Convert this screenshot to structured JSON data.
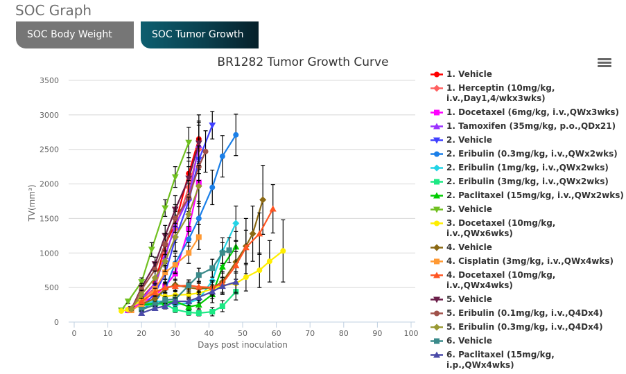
{
  "page": {
    "title": "SOC Graph",
    "tabs": [
      {
        "label": "SOC Body Weight",
        "active": false
      },
      {
        "label": "SOC Tumor Growth",
        "active": true
      }
    ],
    "menu_icon": "hamburger-menu-icon"
  },
  "chart_data": {
    "type": "line",
    "title": "BR1282 Tumor Growth Curve",
    "xlabel": "Days post inoculation",
    "ylabel": "TV(mm³)",
    "xlim": [
      0,
      100
    ],
    "ylim": [
      0,
      3500
    ],
    "xticks": [
      "0",
      "10",
      "20",
      "30",
      "40",
      "50",
      "60",
      "70",
      "80",
      "90",
      "100"
    ],
    "yticks": [
      "0",
      "500",
      "1000",
      "1500",
      "2000",
      "2500",
      "3000",
      "3500"
    ],
    "grid": "horizontal",
    "legend_position": "right",
    "error_bars": true,
    "series": [
      {
        "name": "1. Vehicle",
        "color": "#ff0000",
        "marker": "circle",
        "x": [
          16,
          20,
          24,
          27,
          30,
          34,
          37
        ],
        "y": [
          180,
          350,
          560,
          1120,
          1420,
          2150,
          2650
        ],
        "err": [
          20,
          60,
          100,
          150,
          200,
          300,
          350
        ]
      },
      {
        "name": "1. Herceptin (10mg/kg,\ni.v.,Day1,4/wkx3wks)",
        "color": "#ff6060",
        "marker": "diamond",
        "x": [
          16,
          20,
          24,
          27,
          30,
          34,
          37
        ],
        "y": [
          175,
          320,
          500,
          1000,
          1350,
          1950,
          2500
        ],
        "err": [
          20,
          60,
          100,
          150,
          200,
          300,
          350
        ]
      },
      {
        "name": "1. Docetaxel (6mg/kg, i.v.,QWx3wks)",
        "color": "#ff00ff",
        "marker": "square",
        "x": [
          16,
          20,
          24,
          27,
          30,
          34,
          37
        ],
        "y": [
          170,
          280,
          380,
          520,
          700,
          1350,
          2020
        ],
        "err": [
          20,
          50,
          80,
          100,
          150,
          250,
          300
        ]
      },
      {
        "name": "1. Tamoxifen (35mg/kg, p.o.,QDx21)",
        "color": "#9b30ff",
        "marker": "triangle",
        "x": [
          16,
          20,
          24,
          27,
          30,
          34,
          37
        ],
        "y": [
          175,
          330,
          560,
          950,
          1400,
          1800,
          2560
        ],
        "err": [
          20,
          60,
          100,
          150,
          200,
          300,
          350
        ]
      },
      {
        "name": "2. Vehicle",
        "color": "#4040ff",
        "marker": "triangle-down",
        "x": [
          20,
          24,
          27,
          30,
          34,
          37,
          41
        ],
        "y": [
          200,
          420,
          700,
          1200,
          1750,
          2350,
          2850
        ],
        "err": [
          40,
          80,
          120,
          180,
          250,
          300,
          200
        ]
      },
      {
        "name": "2. Eribulin (0.3mg/kg, i.v.,QWx2wks)",
        "color": "#1a7fe8",
        "marker": "circle",
        "x": [
          20,
          24,
          27,
          30,
          34,
          37,
          41,
          44,
          48
        ],
        "y": [
          180,
          300,
          480,
          850,
          1200,
          1500,
          1950,
          2400,
          2710
        ],
        "err": [
          30,
          50,
          80,
          150,
          180,
          250,
          250,
          300,
          300
        ]
      },
      {
        "name": "2. Eribulin (1mg/kg, i.v.,QWx2wks)",
        "color": "#22d4e6",
        "marker": "diamond",
        "x": [
          20,
          24,
          27,
          30,
          34,
          37,
          41,
          44,
          48
        ],
        "y": [
          260,
          300,
          300,
          250,
          280,
          330,
          600,
          1020,
          1430
        ],
        "err": [
          30,
          40,
          50,
          50,
          60,
          80,
          150,
          200,
          250
        ]
      },
      {
        "name": "2. Eribulin (3mg/kg, i.v.,QWx2wks)",
        "color": "#1ce884",
        "marker": "square",
        "x": [
          20,
          24,
          27,
          30,
          34,
          37,
          41,
          44,
          48
        ],
        "y": [
          240,
          250,
          260,
          180,
          140,
          130,
          150,
          230,
          440
        ],
        "err": [
          30,
          40,
          40,
          40,
          40,
          40,
          60,
          80,
          120
        ]
      },
      {
        "name": "2. Paclitaxel (15mg/kg, i.v.,QWx2wks)",
        "color": "#00cc00",
        "marker": "triangle",
        "x": [
          20,
          24,
          27,
          30,
          34,
          37,
          41,
          44,
          48
        ],
        "y": [
          250,
          270,
          280,
          300,
          220,
          250,
          400,
          800,
          1090
        ],
        "err": [
          30,
          40,
          40,
          50,
          50,
          60,
          120,
          200,
          220
        ]
      },
      {
        "name": "3. Vehicle",
        "color": "#70c020",
        "marker": "triangle-down",
        "x": [
          14,
          16,
          20,
          23,
          27,
          30,
          34
        ],
        "y": [
          170,
          300,
          580,
          1050,
          1650,
          2100,
          2600
        ],
        "err": [
          15,
          30,
          60,
          100,
          120,
          150,
          220
        ]
      },
      {
        "name": "3. Docetaxel (10mg/kg, i.v.,QWx6wks)",
        "color": "#ffee00",
        "marker": "circle",
        "x": [
          14,
          16,
          20,
          24,
          27,
          30,
          34,
          37,
          41,
          44,
          48,
          51,
          55,
          58,
          62
        ],
        "y": [
          160,
          180,
          320,
          420,
          370,
          390,
          400,
          420,
          480,
          530,
          560,
          650,
          750,
          880,
          1030
        ],
        "err": [
          15,
          20,
          40,
          50,
          60,
          60,
          70,
          80,
          100,
          120,
          150,
          200,
          250,
          300,
          450
        ]
      },
      {
        "name": "4. Vehicle",
        "color": "#8b6914",
        "marker": "diamond",
        "x": [
          20,
          24,
          27,
          30,
          34,
          37,
          41,
          44,
          48,
          51,
          53,
          56
        ],
        "y": [
          260,
          340,
          480,
          540,
          500,
          480,
          500,
          580,
          870,
          1100,
          1280,
          1770
        ],
        "err": [
          40,
          50,
          60,
          80,
          80,
          80,
          100,
          150,
          300,
          400,
          400,
          500
        ]
      },
      {
        "name": "4. Cisplatin (3mg/kg, i.v.,QWx4wks)",
        "color": "#ff9933",
        "marker": "square",
        "x": [
          17,
          20,
          24,
          27,
          30,
          34,
          37
        ],
        "y": [
          170,
          260,
          480,
          720,
          830,
          1000,
          1230
        ],
        "err": [
          15,
          40,
          80,
          100,
          120,
          150,
          180
        ]
      },
      {
        "name": "4. Docetaxel (10mg/kg, i.v.,QWx4wks)",
        "color": "#ff5522",
        "marker": "triangle",
        "x": [
          20,
          24,
          27,
          30,
          34,
          37,
          41,
          44,
          48,
          51,
          55,
          59
        ],
        "y": [
          300,
          430,
          500,
          520,
          530,
          510,
          500,
          560,
          820,
          1080,
          1280,
          1640
        ],
        "err": [
          40,
          60,
          70,
          80,
          80,
          80,
          100,
          150,
          200,
          250,
          300,
          350
        ]
      },
      {
        "name": "5. Vehicle",
        "color": "#6b1f4a",
        "marker": "triangle-down",
        "x": [
          17,
          20,
          24,
          27,
          30,
          34,
          37
        ],
        "y": [
          190,
          500,
          840,
          1250,
          1630,
          2080,
          2590
        ],
        "err": [
          20,
          60,
          100,
          150,
          200,
          250,
          300
        ]
      },
      {
        "name": "5. Eribulin (0.1mg/kg, i.v.,Q4Dx4)",
        "color": "#a0524a",
        "marker": "circle",
        "x": [
          17,
          20,
          24,
          27,
          30,
          34,
          37,
          39
        ],
        "y": [
          190,
          470,
          760,
          1130,
          1500,
          1800,
          2250,
          2470
        ],
        "err": [
          20,
          60,
          100,
          150,
          200,
          250,
          300,
          300
        ]
      },
      {
        "name": "5. Eribulin (0.3mg/kg, i.v.,Q4Dx4)",
        "color": "#999933",
        "marker": "diamond",
        "x": [
          17,
          20,
          24,
          27,
          30,
          34,
          37
        ],
        "y": [
          190,
          400,
          640,
          880,
          1230,
          1560,
          1970
        ],
        "err": [
          20,
          60,
          100,
          150,
          200,
          250,
          300
        ]
      },
      {
        "name": "6. Vehicle",
        "color": "#3a8a8a",
        "marker": "square",
        "x": [
          20,
          24,
          27,
          30,
          34,
          37,
          41,
          44,
          46
        ],
        "y": [
          180,
          250,
          320,
          330,
          530,
          680,
          780,
          1000,
          1040
        ],
        "err": [
          30,
          40,
          50,
          60,
          80,
          100,
          130,
          150,
          180
        ]
      },
      {
        "name": "6. Paclitaxel (15mg/kg, i.p.,QWx4wks)",
        "color": "#4a4aa8",
        "marker": "triangle",
        "x": [
          20,
          24,
          27,
          30,
          34,
          37,
          41,
          44,
          48
        ],
        "y": [
          130,
          200,
          230,
          300,
          300,
          360,
          440,
          520,
          580
        ],
        "err": [
          30,
          30,
          40,
          50,
          60,
          80,
          100,
          120,
          150
        ]
      }
    ]
  }
}
